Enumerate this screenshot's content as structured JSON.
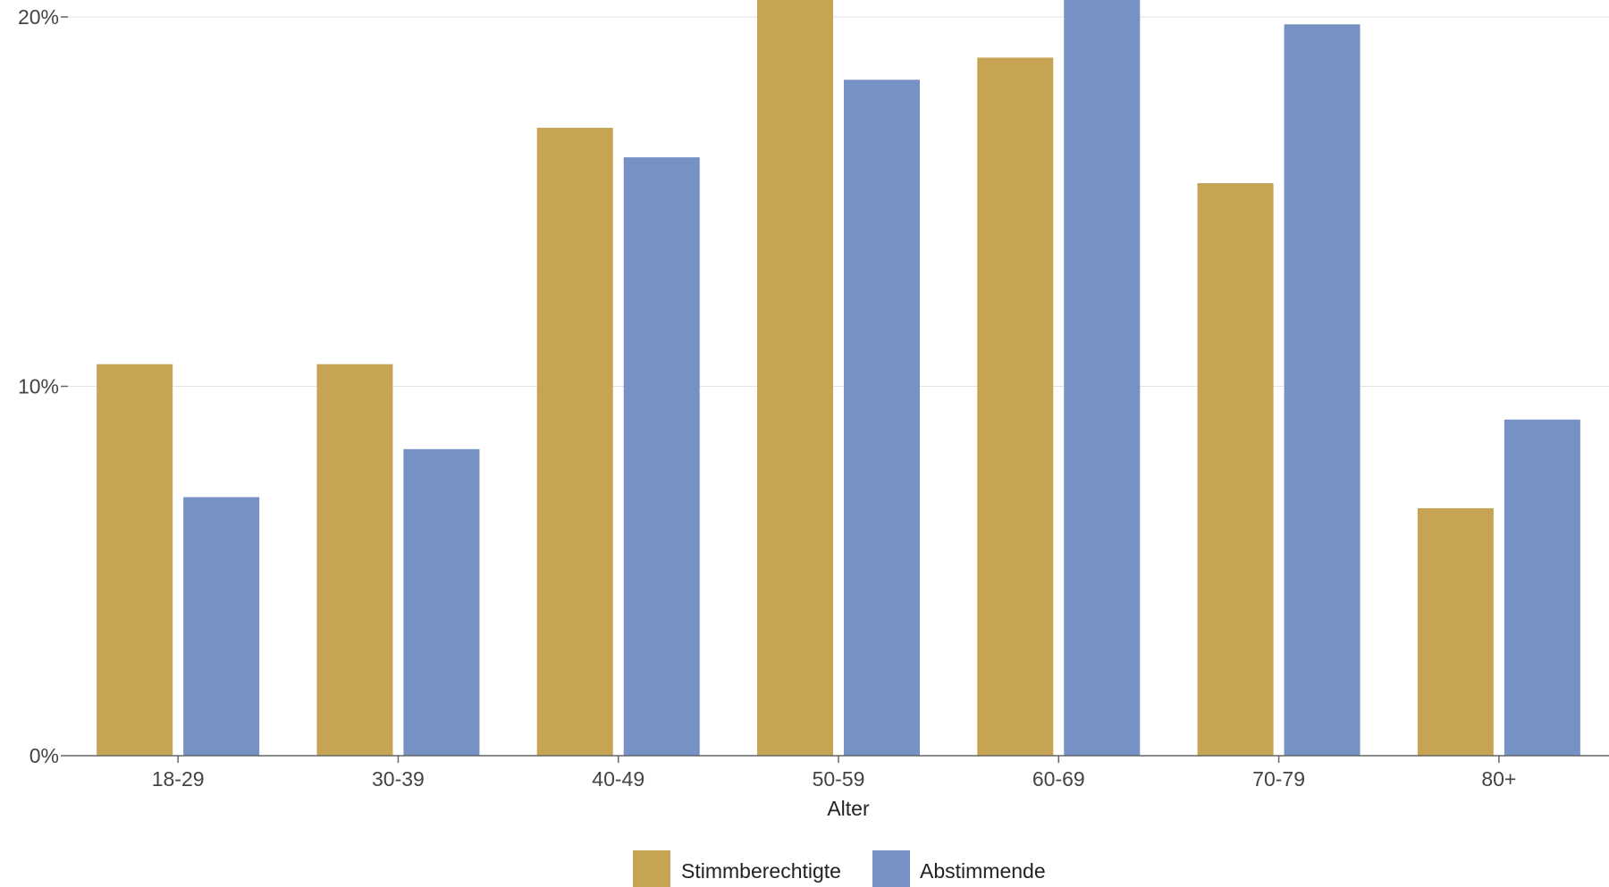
{
  "chart_data": {
    "type": "bar",
    "categories": [
      "18-29",
      "30-39",
      "40-49",
      "50-59",
      "60-69",
      "70-79",
      "80+"
    ],
    "series": [
      {
        "name": "Stimmberechtigte",
        "color": "#c6a453",
        "values": [
          10.6,
          10.6,
          17.0,
          20.5,
          18.9,
          15.5,
          6.7
        ]
      },
      {
        "name": "Abstimmende",
        "color": "#7691c3",
        "values": [
          7.0,
          8.3,
          16.2,
          18.3,
          20.8,
          19.8,
          9.1
        ]
      }
    ],
    "xlabel": "Alter",
    "ylabel": "",
    "ylim": [
      0,
      20
    ],
    "yticks": [
      0,
      10,
      20
    ],
    "ytick_labels": [
      "0%",
      "10%",
      "20%"
    ],
    "grid": true,
    "legend": "bottom-center"
  }
}
